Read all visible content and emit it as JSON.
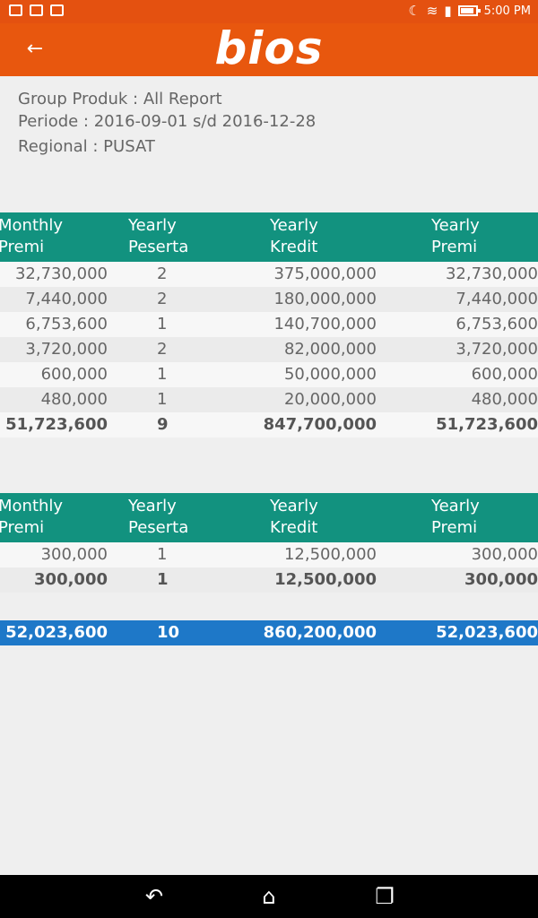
{
  "status_bar": {
    "time": "5:00 PM",
    "icons": [
      "mail-icon",
      "photo-icon",
      "bag-icon",
      "moon-icon",
      "wifi-icon",
      "signal-icon",
      "battery-icon"
    ]
  },
  "app_bar": {
    "logo_text": "bios",
    "back_icon": "arrow-left-icon"
  },
  "info": {
    "group": "Group Produk : All Report",
    "periode": "Periode : 2016-09-01 s/d 2016-12-28",
    "regional": "Regional : PUSAT"
  },
  "table1": {
    "headers": [
      "Monthly\nPremi",
      "Yearly\nPeserta",
      "Yearly\nKredit",
      "Yearly\nPremi"
    ],
    "rows": [
      [
        "32,730,000",
        "2",
        "375,000,000",
        "32,730,000"
      ],
      [
        "7,440,000",
        "2",
        "180,000,000",
        "7,440,000"
      ],
      [
        "6,753,600",
        "1",
        "140,700,000",
        "6,753,600"
      ],
      [
        "3,720,000",
        "2",
        "82,000,000",
        "3,720,000"
      ],
      [
        "600,000",
        "1",
        "50,000,000",
        "600,000"
      ],
      [
        "480,000",
        "1",
        "20,000,000",
        "480,000"
      ]
    ],
    "total": [
      "51,723,600",
      "9",
      "847,700,000",
      "51,723,600"
    ]
  },
  "table2": {
    "headers": [
      "Monthly\nPremi",
      "Yearly\nPeserta",
      "Yearly\nKredit",
      "Yearly\nPremi"
    ],
    "rows": [
      [
        "300,000",
        "1",
        "12,500,000",
        "300,000"
      ]
    ],
    "total": [
      "300,000",
      "1",
      "12,500,000",
      "300,000"
    ]
  },
  "grand_total": [
    "52,023,600",
    "10",
    "860,200,000",
    "52,023,600"
  ],
  "nav_bar": {
    "icons": [
      "back-nav-icon",
      "home-nav-icon",
      "recents-nav-icon"
    ]
  },
  "colors": {
    "header_orange": "#e8570e",
    "table_header_teal": "#12927f",
    "grand_total_blue": "#1e78c8"
  }
}
